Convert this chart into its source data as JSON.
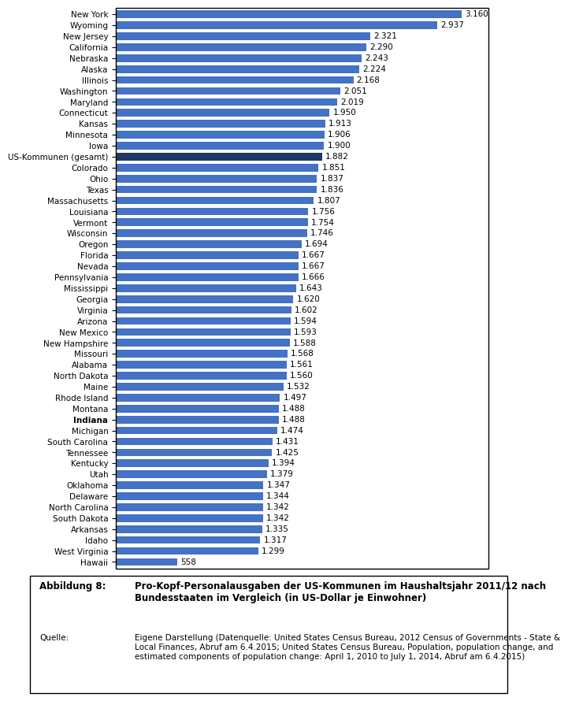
{
  "categories": [
    "New York",
    "Wyoming",
    "New Jersey",
    "California",
    "Nebraska",
    "Alaska",
    "Illinois",
    "Washington",
    "Maryland",
    "Connecticut",
    "Kansas",
    "Minnesota",
    "Iowa",
    "US-Kommunen (gesamt)",
    "Colorado",
    "Ohio",
    "Texas",
    "Massachusetts",
    "Louisiana",
    "Vermont",
    "Wisconsin",
    "Oregon",
    "Florida",
    "Nevada",
    "Pennsylvania",
    "Mississippi",
    "Georgia",
    "Virginia",
    "Arizona",
    "New Mexico",
    "New Hampshire",
    "Missouri",
    "Alabama",
    "North Dakota",
    "Maine",
    "Rhode Island",
    "Montana",
    "Indiana",
    "Michigan",
    "South Carolina",
    "Tennessee",
    "Kentucky",
    "Utah",
    "Oklahoma",
    "Delaware",
    "North Carolina",
    "South Dakota",
    "Arkansas",
    "Idaho",
    "West Virginia",
    "Hawaii"
  ],
  "values": [
    3160,
    2937,
    2321,
    2290,
    2243,
    2224,
    2168,
    2051,
    2019,
    1950,
    1913,
    1906,
    1900,
    1882,
    1851,
    1837,
    1836,
    1807,
    1756,
    1754,
    1746,
    1694,
    1667,
    1667,
    1666,
    1643,
    1620,
    1602,
    1594,
    1593,
    1588,
    1568,
    1561,
    1560,
    1532,
    1497,
    1488,
    1488,
    1474,
    1431,
    1425,
    1394,
    1379,
    1347,
    1344,
    1342,
    1342,
    1335,
    1317,
    1299,
    558
  ],
  "value_labels": [
    "3.160",
    "2.937",
    "2.321",
    "2.290",
    "2.243",
    "2.224",
    "2.168",
    "2.051",
    "2.019",
    "1.950",
    "1.913",
    "1.906",
    "1.900",
    "1.882",
    "1.851",
    "1.837",
    "1.836",
    "1.807",
    "1.756",
    "1.754",
    "1.746",
    "1.694",
    "1.667",
    "1.667",
    "1.666",
    "1.643",
    "1.620",
    "1.602",
    "1.594",
    "1.593",
    "1.588",
    "1.568",
    "1.561",
    "1.560",
    "1.532",
    "1.497",
    "1.488",
    "1.488",
    "1.474",
    "1.431",
    "1.425",
    "1.394",
    "1.379",
    "1.347",
    "1.344",
    "1.342",
    "1.342",
    "1.335",
    "1.317",
    "1.299",
    "558"
  ],
  "bar_color": "#4472C4",
  "highlight_color": "#1F3864",
  "highlight_index": 13,
  "background_color": "#FFFFFF",
  "border_color": "#000000",
  "caption_title": "Abbildung 8:",
  "caption_bold": "Pro-Kopf-Personalausgaben der US-Kommunen im Haushaltsjahr 2011/12 nach\nBundesstaaten im Vergleich (in US-Dollar je Einwohner)",
  "caption_source_label": "Quelle:",
  "caption_source_text": "Eigene Darstellung (Datenquelle: United States Census Bureau, 2012 Census of Governments - State &\nLocal Finances, Abruf am 6.4.2015; United States Census Bureau, Population, population change, and\nestimated components of population change: April 1, 2010 to July 1, 2014, Abruf am 6.4.2015)",
  "xlim": [
    0,
    3400
  ],
  "bar_height": 0.7,
  "label_fontsize": 7.5,
  "value_fontsize": 7.5
}
